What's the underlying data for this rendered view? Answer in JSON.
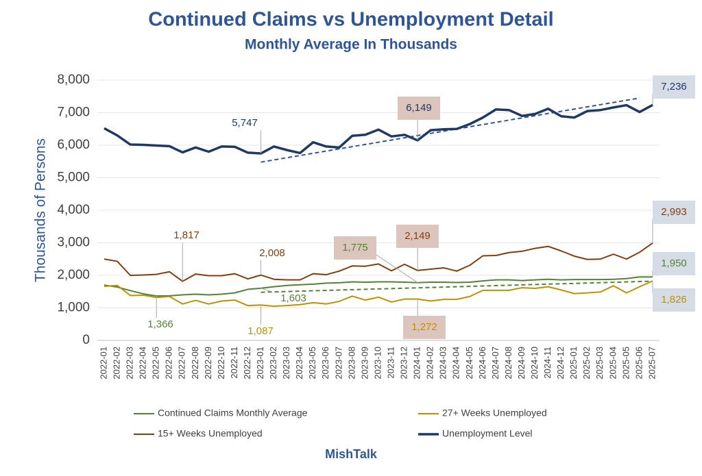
{
  "chart_data": {
    "type": "line",
    "title": "Continued Claims vs Unemployment Detail",
    "subtitle": "Monthly Average In Thousands",
    "y_label": "Thousands of Persons",
    "footer": "MishTalk",
    "categories": [
      "2022-01",
      "2022-02",
      "2022-03",
      "2022-04",
      "2022-05",
      "2022-06",
      "2022-07",
      "2022-08",
      "2022-09",
      "2022-10",
      "2022-11",
      "2022-12",
      "2023-01",
      "2023-02",
      "2023-03",
      "2023-04",
      "2023-05",
      "2023-06",
      "2023-07",
      "2023-08",
      "2023-09",
      "2023-10",
      "2023-11",
      "2023-12",
      "2024-01",
      "2024-02",
      "2024-03",
      "2024-04",
      "2024-05",
      "2024-06",
      "2024-07",
      "2024-08",
      "2024-09",
      "2024-10",
      "2024-11",
      "2024-12",
      "2025-01",
      "2025-02",
      "2025-03",
      "2025-04",
      "2025-05",
      "2025-06",
      "2025-07"
    ],
    "ylim": [
      0,
      8000
    ],
    "yticks": [
      0,
      {
        "value": 1000,
        "label": "1,000"
      },
      {
        "value": 2000,
        "label": "2,000"
      },
      {
        "value": 3000,
        "label": "3,000"
      },
      {
        "value": 4000,
        "label": "4,000"
      },
      {
        "value": 5000,
        "label": "5,000"
      },
      {
        "value": 6000,
        "label": "6,000"
      },
      {
        "value": 7000,
        "label": "7,000"
      },
      {
        "value": 8000,
        "label": "8,000"
      }
    ],
    "grid": true,
    "legend": "bottom",
    "series": [
      {
        "name": "Continued Claims Monthly Average",
        "color": "#548235",
        "width": 2,
        "values": [
          1700,
          1640,
          1530,
          1430,
          1366,
          1370,
          1400,
          1420,
          1400,
          1420,
          1460,
          1570,
          1603,
          1650,
          1690,
          1710,
          1730,
          1760,
          1770,
          1800,
          1790,
          1800,
          1800,
          1790,
          1775,
          1790,
          1790,
          1780,
          1790,
          1830,
          1860,
          1860,
          1840,
          1860,
          1880,
          1860,
          1870,
          1870,
          1870,
          1880,
          1900,
          1950,
          1950
        ],
        "value_labels": [
          null,
          null,
          null,
          null,
          "1,366",
          null,
          null,
          null,
          null,
          null,
          null,
          null,
          "1,603",
          null,
          null,
          null,
          null,
          null,
          null,
          null,
          null,
          null,
          null,
          null,
          "1,775",
          null,
          null,
          null,
          null,
          null,
          null,
          null,
          null,
          null,
          null,
          null,
          null,
          null,
          null,
          null,
          null,
          null,
          "1,950"
        ]
      },
      {
        "name": "27+ Weeks Unemployed",
        "color": "#bf9000",
        "width": 2,
        "values": [
          1660,
          1690,
          1380,
          1390,
          1320,
          1350,
          1120,
          1230,
          1120,
          1210,
          1240,
          1070,
          1087,
          1050,
          1070,
          1100,
          1160,
          1120,
          1200,
          1360,
          1240,
          1330,
          1180,
          1270,
          1272,
          1210,
          1260,
          1260,
          1350,
          1540,
          1540,
          1540,
          1620,
          1600,
          1650,
          1550,
          1440,
          1460,
          1490,
          1680,
          1460,
          1650,
          1826
        ],
        "value_labels": [
          null,
          null,
          null,
          null,
          null,
          null,
          null,
          null,
          null,
          null,
          null,
          null,
          "1,087",
          null,
          null,
          null,
          null,
          null,
          null,
          null,
          null,
          null,
          null,
          null,
          "1,272",
          null,
          null,
          null,
          null,
          null,
          null,
          null,
          null,
          null,
          null,
          null,
          null,
          null,
          null,
          null,
          null,
          null,
          "1,826"
        ]
      },
      {
        "name": "15+ Weeks Unemployed",
        "color": "#843c0c",
        "width": 2,
        "values": [
          2500,
          2430,
          2000,
          2010,
          2030,
          2110,
          1817,
          2040,
          1990,
          1990,
          2050,
          1890,
          2008,
          1880,
          1860,
          1860,
          2050,
          2020,
          2130,
          2290,
          2280,
          2350,
          2140,
          2340,
          2149,
          2190,
          2230,
          2130,
          2310,
          2600,
          2610,
          2700,
          2740,
          2830,
          2890,
          2750,
          2590,
          2490,
          2500,
          2650,
          2500,
          2710,
          2993
        ],
        "value_labels": [
          null,
          null,
          null,
          null,
          null,
          null,
          "1,817",
          null,
          null,
          null,
          null,
          null,
          "2,008",
          null,
          null,
          null,
          null,
          null,
          null,
          null,
          null,
          null,
          null,
          null,
          "2,149",
          null,
          null,
          null,
          null,
          null,
          null,
          null,
          null,
          null,
          null,
          null,
          null,
          null,
          null,
          null,
          null,
          null,
          "2,993"
        ]
      },
      {
        "name": "Unemployment Level",
        "color": "#1f3864",
        "width": 3.5,
        "values": [
          6520,
          6300,
          6020,
          6010,
          5990,
          5970,
          5780,
          5930,
          5800,
          5960,
          5950,
          5770,
          5747,
          5960,
          5850,
          5760,
          6090,
          5960,
          5930,
          6290,
          6320,
          6480,
          6270,
          6320,
          6149,
          6460,
          6490,
          6500,
          6650,
          6850,
          7100,
          7080,
          6900,
          6960,
          7120,
          6890,
          6850,
          7050,
          7080,
          7160,
          7230,
          7020,
          7236
        ],
        "value_labels": [
          null,
          null,
          null,
          null,
          null,
          null,
          null,
          null,
          null,
          null,
          null,
          null,
          "5,747",
          null,
          null,
          null,
          null,
          null,
          null,
          null,
          null,
          null,
          null,
          null,
          "6,149",
          null,
          null,
          null,
          null,
          null,
          null,
          null,
          null,
          null,
          null,
          null,
          null,
          null,
          null,
          null,
          null,
          null,
          "7,236"
        ]
      }
    ],
    "trendlines": [
      {
        "color": "#2f5597",
        "x": [
          "2023-01",
          "2025-06"
        ],
        "values": [
          5480,
          7450
        ]
      },
      {
        "color": "#548235",
        "x": [
          "2023-01",
          "2025-07"
        ],
        "values": [
          1480,
          1820
        ]
      }
    ]
  }
}
